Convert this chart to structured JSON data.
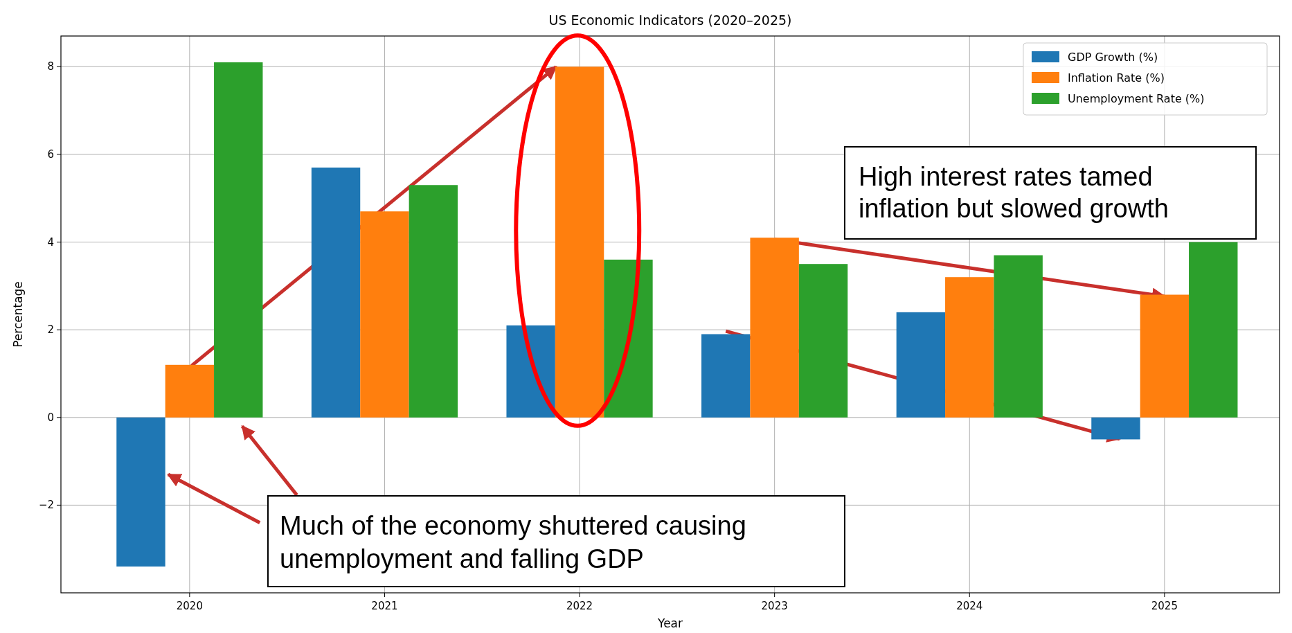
{
  "chart_data": {
    "type": "bar",
    "title": "US Economic Indicators (2020–2025)",
    "xlabel": "Year",
    "ylabel": "Percentage",
    "categories": [
      "2020",
      "2021",
      "2022",
      "2023",
      "2024",
      "2025"
    ],
    "series": [
      {
        "name": "GDP Growth (%)",
        "color": "#1f77b4",
        "values": [
          -3.4,
          5.7,
          2.1,
          1.9,
          2.4,
          -0.5
        ]
      },
      {
        "name": "Inflation Rate (%)",
        "color": "#ff7f0e",
        "values": [
          1.2,
          4.7,
          8.0,
          4.1,
          3.2,
          2.8
        ]
      },
      {
        "name": "Unemployment Rate (%)",
        "color": "#2ca02c",
        "values": [
          8.1,
          5.3,
          3.6,
          3.5,
          3.7,
          4.0
        ]
      }
    ],
    "ylim": [
      -4.0,
      8.7
    ],
    "yticks": [
      {
        "value": -2,
        "label": "−2"
      },
      0,
      2,
      4,
      6,
      8
    ],
    "grid": true,
    "legend": "top right",
    "annotations": [
      "High interest rates tamed inflation but slowed growth",
      "Much of the economy shuttered causing unemployment and falling GDP"
    ]
  }
}
